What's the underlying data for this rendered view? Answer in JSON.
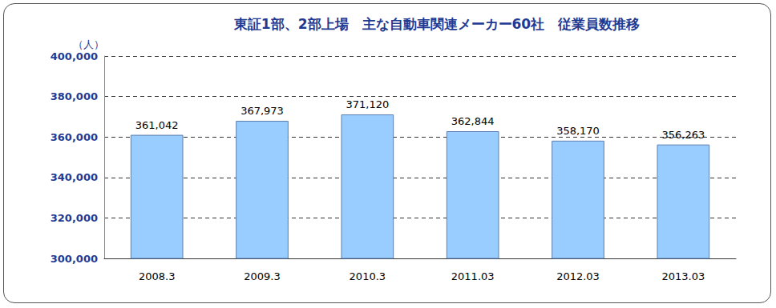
{
  "chart_data": {
    "type": "bar",
    "title": "東証1部、2部上場　主な自動車関連メーカー60社　従業員数推移",
    "y_label": "（人）",
    "categories": [
      "2008.3",
      "2009.3",
      "2010.3",
      "2011.03",
      "2012.03",
      "2013.03"
    ],
    "values": [
      361042,
      367973,
      371120,
      362844,
      358170,
      356263
    ],
    "value_labels": [
      "361,042",
      "367,973",
      "371,120",
      "362,844",
      "358,170",
      "356,263"
    ],
    "color": "#99ccff",
    "ylim": [
      300000,
      400000
    ],
    "yticks": [
      {
        "value": 300000,
        "label": "300,000"
      },
      {
        "value": 320000,
        "label": "320,000"
      },
      {
        "value": 340000,
        "label": "340,000"
      },
      {
        "value": 360000,
        "label": "360,000"
      },
      {
        "value": 380000,
        "label": "380,000"
      },
      {
        "value": 400000,
        "label": "400,000"
      }
    ],
    "grid": true,
    "data_labels": true
  }
}
